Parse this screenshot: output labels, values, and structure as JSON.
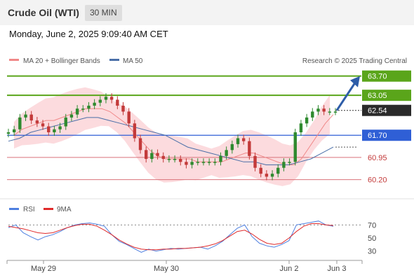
{
  "header": {
    "title": "Crude Oil (WTI)",
    "timeframe": "30 MIN"
  },
  "timestamp": "Monday, June 2, 2025 9:09:40 AM CET",
  "colors": {
    "up_candle": "#2f8a2f",
    "down_candle": "#c33a3a",
    "resistance": "#5aa51a",
    "support": "#d9727a",
    "pivot": "#2f5fd6",
    "ma20": "#f08888",
    "ma50": "#4a6fa8",
    "band_fill": "#fbd5d8",
    "rsi": "#4d7fe0",
    "rsi_ma": "#e02a2a",
    "arrow": "#2d5da8"
  },
  "chart_data": [
    {
      "type": "line",
      "panel": "price",
      "credit": "Research © 2025 Trading Central",
      "legend": [
        "MA 20 + Bollinger Bands",
        "MA 50"
      ],
      "x_ticks": [
        "May 29",
        "May 30",
        "Jun 2",
        "Jun 3"
      ],
      "ylim": [
        59.6,
        64.0
      ],
      "levels": [
        {
          "value": 63.7,
          "label": "63.70",
          "kind": "resistance"
        },
        {
          "value": 63.05,
          "label": "63.05",
          "kind": "resistance"
        },
        {
          "value": 62.54,
          "label": "62.54",
          "kind": "last"
        },
        {
          "value": 61.7,
          "label": "61.70",
          "kind": "pivot"
        },
        {
          "value": 60.95,
          "label": "60.95",
          "kind": "support"
        },
        {
          "value": 60.2,
          "label": "60.20",
          "kind": "support"
        }
      ],
      "series": [
        {
          "name": "Crude Oil (WTI)",
          "values": [
            61.8,
            61.9,
            62.3,
            62.4,
            62.2,
            62.1,
            62.0,
            61.8,
            61.9,
            62.0,
            62.3,
            62.4,
            62.6,
            62.6,
            62.7,
            62.8,
            62.9,
            63.0,
            62.9,
            62.7,
            62.5,
            62.1,
            61.6,
            61.2,
            60.9,
            61.1,
            61.0,
            60.9,
            60.9,
            60.9,
            60.8,
            60.7,
            60.8,
            60.8,
            60.8,
            60.8,
            60.8,
            61.0,
            61.2,
            61.4,
            61.6,
            61.5,
            61.0,
            60.6,
            60.4,
            60.3,
            60.4,
            60.6,
            60.8,
            60.8,
            61.8,
            62.1,
            62.3,
            62.5,
            62.6,
            62.5,
            62.5,
            62.5
          ]
        },
        {
          "name": "MA 20",
          "values": [
            61.7,
            61.9,
            62.0,
            62.1,
            62.2,
            62.2,
            62.3,
            62.4,
            62.5,
            62.6,
            62.6,
            62.6,
            62.5,
            62.3,
            62.1,
            61.8,
            61.5,
            61.2,
            61.0,
            60.9,
            60.9,
            60.9,
            60.9,
            60.8,
            60.8,
            60.8,
            60.8,
            60.9,
            61.0,
            61.1,
            61.1,
            61.0,
            60.9,
            60.8,
            60.7,
            60.7,
            60.9,
            61.3,
            61.7,
            62.1,
            62.4
          ]
        },
        {
          "name": "MA 50",
          "values": [
            61.5,
            61.6,
            61.8,
            61.9,
            62.0,
            62.1,
            62.2,
            62.3,
            62.3,
            62.2,
            62.1,
            62.0,
            61.9,
            61.8,
            61.7,
            61.5,
            61.3,
            61.2,
            61.1,
            61.0,
            60.9,
            60.8,
            60.8,
            60.7,
            60.7,
            60.7,
            60.8,
            60.9,
            61.1,
            61.3
          ]
        }
      ]
    },
    {
      "type": "line",
      "panel": "rsi",
      "legend": [
        "RSI",
        "9MA"
      ],
      "y_ticks": [
        70,
        50,
        30
      ],
      "ylim": [
        20,
        80
      ],
      "series": [
        {
          "name": "RSI",
          "values": [
            66,
            70,
            58,
            52,
            47,
            52,
            55,
            60,
            66,
            70,
            72,
            73,
            71,
            68,
            55,
            45,
            40,
            34,
            28,
            33,
            30,
            32,
            34,
            33,
            34,
            35,
            36,
            33,
            38,
            45,
            55,
            65,
            70,
            52,
            42,
            38,
            36,
            40,
            46,
            70,
            72,
            74,
            76,
            70,
            68
          ]
        },
        {
          "name": "9MA",
          "values": [
            68,
            66,
            64,
            61,
            58,
            57,
            58,
            62,
            66,
            69,
            71,
            71,
            68,
            62,
            55,
            47,
            41,
            36,
            33,
            32,
            32,
            33,
            33,
            34,
            34,
            35,
            36,
            38,
            41,
            46,
            53,
            60,
            62,
            56,
            48,
            42,
            40,
            42,
            50,
            60,
            68,
            72,
            72,
            70,
            69
          ]
        }
      ]
    }
  ]
}
